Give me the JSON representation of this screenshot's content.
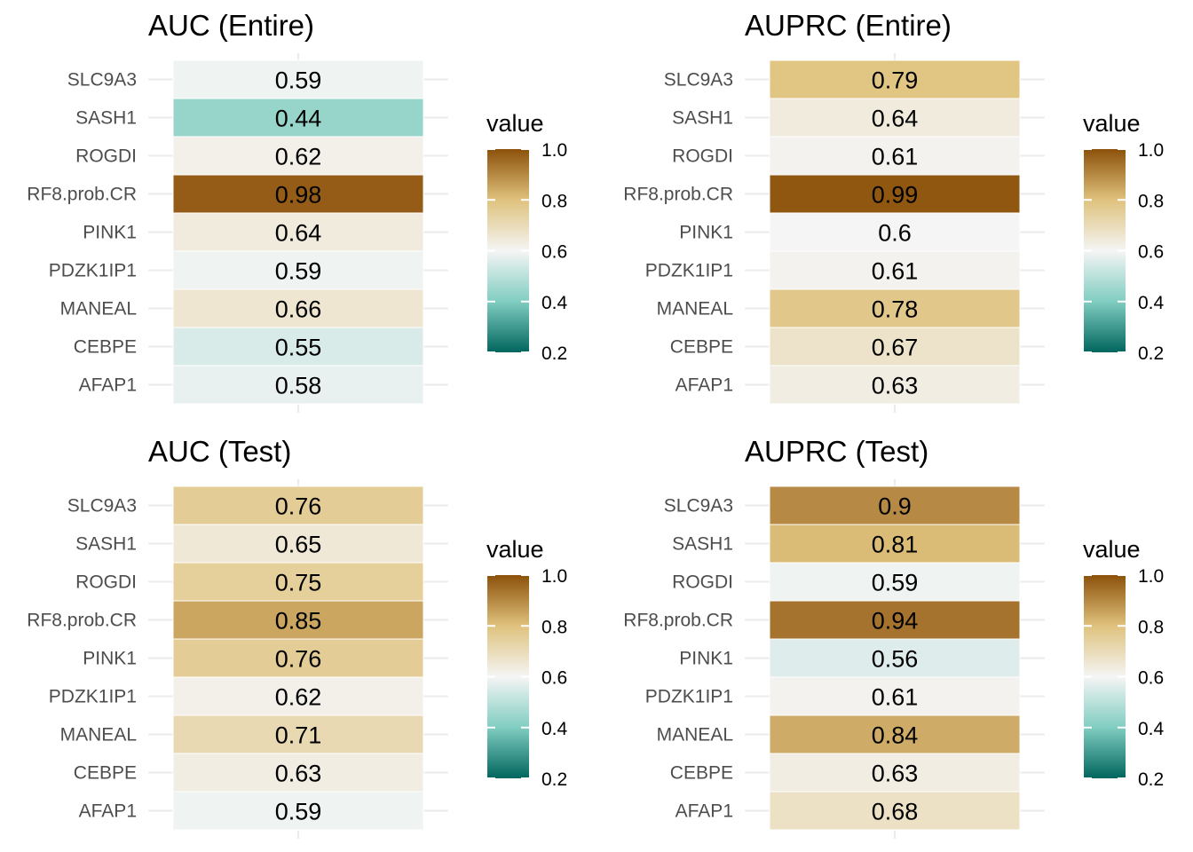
{
  "chart_data": [
    {
      "type": "heatmap",
      "title": "AUC (Entire)",
      "categories": [
        "SLC9A3",
        "SASH1",
        "ROGDI",
        "RF8.prob.CR",
        "PINK1",
        "PDZK1IP1",
        "MANEAL",
        "CEBPE",
        "AFAP1"
      ],
      "values": [
        0.59,
        0.44,
        0.62,
        0.98,
        0.64,
        0.59,
        0.66,
        0.55,
        0.58
      ],
      "labels": [
        "0.59",
        "0.44",
        "0.62",
        "0.98",
        "0.64",
        "0.59",
        "0.66",
        "0.55",
        "0.58"
      ],
      "legend": {
        "title": "value",
        "range": [
          0.2,
          1.0
        ],
        "ticks": [
          "1.0",
          "0.8",
          "0.6",
          "0.4",
          "0.2"
        ]
      }
    },
    {
      "type": "heatmap",
      "title": "AUPRC (Entire)",
      "categories": [
        "SLC9A3",
        "SASH1",
        "ROGDI",
        "RF8.prob.CR",
        "PINK1",
        "PDZK1IP1",
        "MANEAL",
        "CEBPE",
        "AFAP1"
      ],
      "values": [
        0.79,
        0.64,
        0.61,
        0.99,
        0.6,
        0.61,
        0.78,
        0.67,
        0.63
      ],
      "labels": [
        "0.79",
        "0.64",
        "0.61",
        "0.99",
        "0.6",
        "0.61",
        "0.78",
        "0.67",
        "0.63"
      ],
      "legend": {
        "title": "value",
        "range": [
          0.2,
          1.0
        ],
        "ticks": [
          "1.0",
          "0.8",
          "0.6",
          "0.4",
          "0.2"
        ]
      }
    },
    {
      "type": "heatmap",
      "title": "AUC (Test)",
      "categories": [
        "SLC9A3",
        "SASH1",
        "ROGDI",
        "RF8.prob.CR",
        "PINK1",
        "PDZK1IP1",
        "MANEAL",
        "CEBPE",
        "AFAP1"
      ],
      "values": [
        0.76,
        0.65,
        0.75,
        0.85,
        0.76,
        0.62,
        0.71,
        0.63,
        0.59
      ],
      "labels": [
        "0.76",
        "0.65",
        "0.75",
        "0.85",
        "0.76",
        "0.62",
        "0.71",
        "0.63",
        "0.59"
      ],
      "legend": {
        "title": "value",
        "range": [
          0.2,
          1.0
        ],
        "ticks": [
          "1.0",
          "0.8",
          "0.6",
          "0.4",
          "0.2"
        ]
      }
    },
    {
      "type": "heatmap",
      "title": "AUPRC (Test)",
      "categories": [
        "SLC9A3",
        "SASH1",
        "ROGDI",
        "RF8.prob.CR",
        "PINK1",
        "PDZK1IP1",
        "MANEAL",
        "CEBPE",
        "AFAP1"
      ],
      "values": [
        0.9,
        0.81,
        0.59,
        0.94,
        0.56,
        0.61,
        0.84,
        0.63,
        0.68
      ],
      "labels": [
        "0.9",
        "0.81",
        "0.59",
        "0.94",
        "0.56",
        "0.61",
        "0.84",
        "0.63",
        "0.68"
      ],
      "legend": {
        "title": "value",
        "range": [
          0.2,
          1.0
        ],
        "ticks": [
          "1.0",
          "0.8",
          "0.6",
          "0.4",
          "0.2"
        ]
      }
    }
  ],
  "colors": {
    "low": "#01665e",
    "mid_low": "#80cdc1",
    "mid": "#f5f5f5",
    "mid_high": "#dfc27d",
    "high": "#8c510a",
    "gridline": "#ebebeb",
    "axis_text": "#4d4d4d"
  }
}
